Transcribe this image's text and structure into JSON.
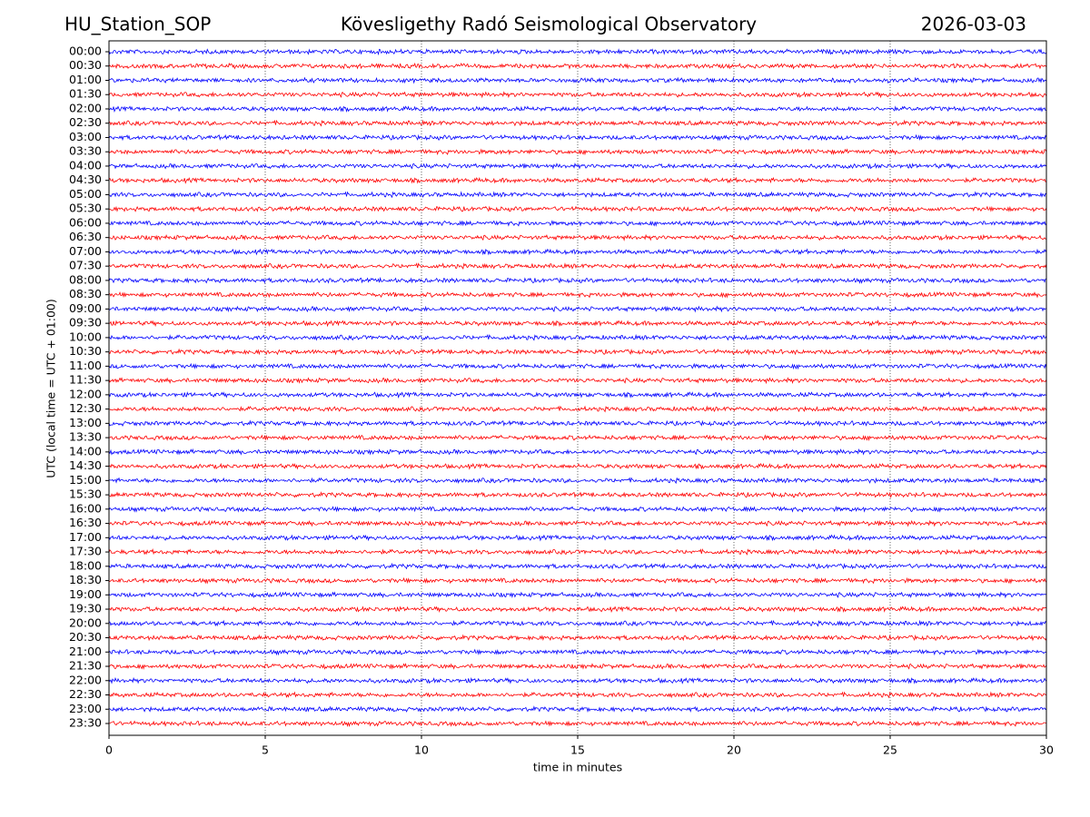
{
  "chart_data": {
    "type": "helicorder",
    "station": "HU_Station_SOP",
    "title": "Kövesligethy Radó Seismological Observatory",
    "date": "2026-03-03",
    "xlabel": "time in minutes",
    "ylabel": "UTC (local time = UTC + 01:00)",
    "categories": [
      "00:00",
      "00:30",
      "01:00",
      "01:30",
      "02:00",
      "02:30",
      "03:00",
      "03:30",
      "04:00",
      "04:30",
      "05:00",
      "05:30",
      "06:00",
      "06:30",
      "07:00",
      "07:30",
      "08:00",
      "08:30",
      "09:00",
      "09:30",
      "10:00",
      "10:30",
      "11:00",
      "11:30",
      "12:00",
      "12:30",
      "13:00",
      "13:30",
      "14:00",
      "14:30",
      "15:00",
      "15:30",
      "16:00",
      "16:30",
      "17:00",
      "17:30",
      "18:00",
      "18:30",
      "19:00",
      "19:30",
      "20:00",
      "20:30",
      "21:00",
      "21:30",
      "22:00",
      "22:30",
      "23:00",
      "23:30"
    ],
    "xlim": [
      0,
      30
    ],
    "xticks": [
      0,
      5,
      10,
      15,
      20,
      25,
      30
    ],
    "colors": [
      "#0000ff",
      "#ff0000"
    ],
    "grid": true
  }
}
